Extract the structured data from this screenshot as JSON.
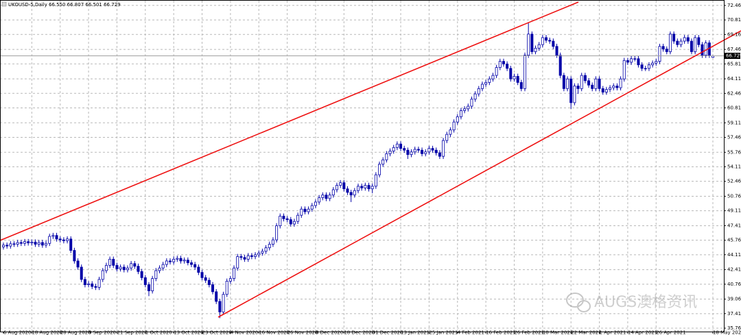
{
  "chart_data": {
    "type": "candlestick",
    "title": "UKOUSD-5,Daily 66.550 66.807 66.501 66.729",
    "watermark": "AUGS澳格资讯",
    "color": "#0000a8",
    "up_fill": "#ffffff",
    "grid": true,
    "ylim": [
      35.37,
      73.0
    ],
    "yticks": [
      {
        "value": 72.46,
        "label": "72.460"
      },
      {
        "value": 70.81,
        "label": "70.810"
      },
      {
        "value": 69.16,
        "label": "69.160"
      },
      {
        "value": 67.46,
        "label": "67.460"
      },
      {
        "value": 65.81,
        "label": "65.810"
      },
      {
        "value": 64.11,
        "label": "64.110"
      },
      {
        "value": 62.46,
        "label": "62.460"
      },
      {
        "value": 60.81,
        "label": "60.810"
      },
      {
        "value": 59.11,
        "label": "59.110"
      },
      {
        "value": 57.46,
        "label": "57.460"
      },
      {
        "value": 55.76,
        "label": "55.760"
      },
      {
        "value": 54.11,
        "label": "54.110"
      },
      {
        "value": 52.46,
        "label": "52.460"
      },
      {
        "value": 50.76,
        "label": "50.760"
      },
      {
        "value": 49.11,
        "label": "49.110"
      },
      {
        "value": 47.41,
        "label": "47.410"
      },
      {
        "value": 45.76,
        "label": "45.760"
      },
      {
        "value": 44.11,
        "label": "44.110"
      },
      {
        "value": 42.41,
        "label": "42.410"
      },
      {
        "value": 40.76,
        "label": "40.760"
      },
      {
        "value": 39.06,
        "label": "39.060"
      },
      {
        "value": 37.41,
        "label": "37.410"
      },
      {
        "value": 35.76,
        "label": "35.760"
      }
    ],
    "categories": [
      "6 Aug 2020",
      null,
      null,
      null,
      null,
      null,
      null,
      null,
      "18 Aug 2020",
      null,
      null,
      null,
      null,
      null,
      null,
      null,
      "28 Aug 2020",
      null,
      null,
      null,
      null,
      null,
      null,
      null,
      "9 Sep 2020",
      null,
      null,
      null,
      null,
      null,
      null,
      null,
      "21 Sep 2020",
      null,
      null,
      null,
      null,
      null,
      null,
      null,
      "1 Oct 2020",
      null,
      null,
      null,
      null,
      null,
      null,
      null,
      "13 Oct 2020",
      null,
      null,
      null,
      null,
      null,
      null,
      null,
      "23 Oct 2020",
      null,
      null,
      null,
      null,
      null,
      null,
      null,
      "4 Nov 2020",
      null,
      null,
      null,
      null,
      null,
      null,
      null,
      "16 Nov 2020",
      null,
      null,
      null,
      null,
      null,
      null,
      null,
      "26 Nov 2020",
      null,
      null,
      null,
      null,
      null,
      null,
      null,
      "8 Dec 2020",
      null,
      null,
      null,
      null,
      null,
      null,
      null,
      "18 Dec 2020",
      null,
      null,
      null,
      null,
      null,
      null,
      null,
      "31 Dec 2020",
      null,
      null,
      null,
      null,
      null,
      null,
      null,
      "13 Jan 2021",
      null,
      null,
      null,
      null,
      null,
      null,
      null,
      "25 Jan 2021",
      null,
      null,
      null,
      null,
      null,
      null,
      null,
      "4 Feb 2021",
      null,
      null,
      null,
      null,
      null,
      null,
      null,
      "16 Feb 2021",
      null,
      null,
      null,
      null,
      null,
      null,
      null,
      "26 Feb 2021",
      null,
      null,
      null,
      null,
      null,
      null,
      null,
      "10 Mar 2021",
      null,
      null,
      null,
      null,
      null,
      null,
      null,
      "22 Mar 2021",
      null,
      null,
      null,
      null,
      null,
      null,
      null,
      "1 Apr 2021",
      null,
      null,
      null,
      null,
      null,
      null,
      null,
      "14 Apr 2021",
      null,
      null,
      null,
      null,
      null,
      null,
      null,
      "26 Apr 2021",
      null,
      null,
      null,
      null,
      null,
      null,
      null,
      null,
      null,
      null,
      null,
      null,
      null,
      null,
      null,
      "18 May 2021"
    ],
    "open": [
      45.0,
      45.2,
      45.1,
      45.35,
      45.3,
      45.5,
      45.4,
      45.6,
      45.45,
      45.55,
      45.3,
      45.5,
      45.2,
      45.4,
      46.2,
      46.3,
      45.9,
      45.8,
      45.7,
      45.9,
      44.6,
      43.4,
      42.7,
      41.3,
      40.7,
      40.8,
      40.5,
      40.4,
      41.3,
      42.3,
      42.9,
      43.6,
      42.9,
      42.5,
      42.7,
      42.4,
      42.6,
      43.1,
      42.8,
      42.2,
      41.5,
      40.7,
      40.0,
      41.4,
      42.3,
      42.6,
      43.0,
      43.4,
      43.3,
      43.6,
      43.7,
      43.4,
      43.5,
      43.2,
      43.0,
      42.7,
      42.1,
      41.5,
      41.2,
      40.7,
      39.9,
      38.8,
      37.6,
      39.6,
      41.1,
      41.4,
      42.6,
      43.9,
      43.8,
      43.6,
      44.0,
      43.9,
      44.1,
      44.3,
      44.5,
      44.9,
      45.3,
      45.8,
      47.4,
      48.5,
      48.2,
      48.1,
      47.6,
      47.9,
      48.6,
      49.3,
      49.0,
      49.3,
      49.7,
      50.1,
      50.6,
      50.9,
      50.5,
      50.9,
      51.5,
      52.0,
      52.3,
      51.6,
      51.2,
      50.9,
      51.4,
      51.9,
      51.7,
      52.0,
      51.6,
      51.9,
      53.2,
      54.4,
      54.9,
      55.6,
      55.9,
      56.3,
      56.7,
      56.2,
      56.0,
      55.5,
      55.8,
      56.1,
      56.0,
      55.6,
      55.8,
      56.2,
      56.0,
      55.7,
      55.3,
      57.1,
      57.8,
      58.3,
      59.2,
      59.8,
      60.5,
      60.7,
      61.0,
      61.8,
      62.4,
      63.0,
      63.5,
      63.7,
      64.1,
      64.5,
      65.4,
      66.1,
      65.8,
      65.3,
      64.1,
      64.4,
      63.7,
      63.0,
      66.8,
      69.2,
      67.2,
      67.6,
      68.0,
      68.8,
      68.5,
      68.4,
      67.8,
      66.8,
      64.5,
      63.0,
      64.1,
      61.4,
      63.3,
      63.0,
      64.5,
      63.9,
      63.4,
      63.0,
      64.1,
      63.0,
      62.6,
      62.9,
      63.1,
      63.3,
      63.1,
      64.1,
      66.2,
      66.0,
      66.4,
      66.4,
      65.7,
      65.3,
      65.3,
      65.7,
      65.9,
      66.1,
      67.8,
      67.5,
      67.2,
      69.2,
      68.4,
      68.0,
      68.4,
      68.8,
      68.4,
      67.2,
      68.8,
      68.0,
      66.8,
      68.2,
      66.55
    ],
    "high": [
      45.5,
      45.5,
      45.65,
      45.65,
      45.8,
      45.8,
      45.9,
      45.9,
      45.85,
      45.85,
      45.8,
      45.8,
      45.7,
      46.5,
      46.6,
      46.6,
      46.2,
      46.1,
      46.2,
      46.2,
      44.9,
      43.7,
      43.0,
      41.6,
      41.1,
      41.1,
      40.8,
      41.6,
      42.6,
      43.2,
      43.9,
      43.9,
      43.2,
      43.0,
      43.0,
      42.9,
      43.4,
      43.4,
      43.1,
      42.5,
      41.8,
      41.0,
      41.7,
      42.6,
      42.9,
      43.3,
      43.7,
      43.7,
      43.9,
      44.0,
      44.0,
      43.8,
      43.8,
      43.5,
      43.3,
      43.0,
      42.4,
      41.8,
      41.5,
      41.0,
      40.2,
      39.1,
      39.9,
      41.4,
      41.7,
      42.9,
      44.2,
      44.2,
      44.1,
      44.3,
      44.3,
      44.4,
      44.6,
      44.8,
      45.2,
      45.6,
      46.1,
      47.7,
      48.8,
      48.8,
      48.5,
      48.4,
      48.2,
      48.9,
      49.6,
      49.6,
      49.6,
      50.0,
      50.4,
      50.9,
      51.2,
      51.2,
      51.2,
      51.8,
      52.3,
      52.6,
      52.6,
      51.9,
      51.5,
      51.7,
      52.2,
      52.2,
      52.3,
      52.3,
      52.2,
      53.5,
      54.7,
      55.2,
      55.9,
      56.2,
      56.6,
      57.0,
      57.0,
      56.5,
      56.3,
      56.1,
      56.4,
      56.4,
      56.3,
      56.1,
      56.5,
      56.5,
      56.3,
      56.0,
      57.4,
      58.1,
      58.6,
      59.5,
      60.1,
      60.8,
      61.0,
      61.3,
      62.1,
      62.7,
      63.3,
      63.8,
      64.0,
      64.4,
      64.8,
      65.7,
      66.4,
      66.4,
      66.1,
      65.6,
      64.7,
      64.7,
      64.0,
      67.1,
      70.5,
      69.5,
      67.9,
      68.3,
      69.1,
      69.1,
      68.8,
      68.7,
      68.1,
      67.1,
      64.8,
      64.4,
      64.4,
      63.6,
      63.6,
      64.8,
      64.8,
      64.2,
      63.7,
      64.4,
      64.4,
      63.3,
      63.2,
      63.4,
      63.6,
      63.6,
      64.4,
      66.5,
      66.5,
      66.7,
      66.7,
      66.7,
      66.0,
      65.6,
      66.0,
      66.2,
      66.4,
      68.1,
      68.1,
      67.8,
      69.5,
      69.5,
      68.7,
      68.7,
      69.1,
      69.1,
      68.7,
      69.1,
      69.1,
      68.3,
      68.5,
      68.5,
      66.807
    ],
    "low": [
      44.7,
      44.8,
      44.8,
      45.0,
      45.0,
      45.1,
      45.1,
      45.15,
      45.15,
      45.0,
      45.0,
      44.9,
      44.9,
      45.1,
      45.9,
      45.6,
      45.5,
      45.4,
      45.4,
      44.3,
      43.1,
      42.4,
      41.0,
      40.4,
      40.4,
      40.2,
      40.1,
      40.1,
      41.0,
      42.0,
      42.6,
      42.6,
      42.2,
      42.2,
      42.1,
      42.1,
      42.3,
      42.5,
      41.9,
      41.2,
      40.4,
      39.4,
      39.7,
      41.1,
      42.0,
      42.3,
      42.7,
      43.0,
      43.0,
      43.3,
      43.1,
      43.1,
      42.9,
      42.7,
      42.4,
      41.8,
      41.2,
      40.9,
      40.4,
      39.6,
      38.5,
      36.9,
      37.3,
      39.3,
      40.8,
      41.1,
      42.3,
      43.5,
      43.3,
      43.3,
      43.6,
      43.6,
      43.8,
      44.0,
      44.2,
      44.6,
      45.0,
      45.5,
      47.1,
      47.9,
      47.8,
      47.3,
      47.3,
      47.6,
      48.3,
      48.7,
      48.7,
      49.0,
      49.4,
      49.8,
      50.3,
      50.2,
      50.2,
      50.6,
      51.2,
      51.7,
      51.3,
      50.9,
      50.1,
      50.6,
      51.1,
      51.4,
      51.4,
      51.3,
      51.1,
      51.6,
      52.9,
      54.1,
      54.6,
      55.3,
      55.6,
      56.0,
      55.9,
      55.7,
      55.0,
      55.2,
      55.5,
      55.7,
      55.3,
      55.3,
      55.5,
      55.7,
      55.4,
      55.0,
      55.0,
      56.8,
      57.5,
      58.0,
      58.9,
      59.5,
      60.2,
      60.4,
      60.7,
      61.5,
      62.1,
      62.7,
      63.2,
      63.4,
      63.8,
      64.2,
      65.1,
      65.5,
      65.0,
      63.8,
      63.8,
      63.4,
      62.7,
      62.7,
      66.5,
      66.9,
      66.9,
      67.3,
      67.7,
      68.2,
      68.1,
      67.5,
      66.5,
      64.2,
      62.7,
      62.7,
      60.7,
      61.1,
      62.4,
      62.7,
      63.6,
      63.1,
      62.7,
      62.7,
      62.7,
      62.3,
      62.3,
      62.6,
      62.8,
      62.8,
      62.8,
      63.8,
      65.7,
      65.7,
      66.1,
      65.4,
      65.0,
      65.0,
      65.0,
      65.4,
      65.6,
      65.8,
      67.2,
      66.9,
      66.9,
      68.1,
      67.7,
      67.7,
      68.1,
      68.1,
      66.9,
      66.9,
      67.7,
      66.5,
      66.5,
      66.5,
      66.501
    ],
    "close": [
      45.2,
      45.1,
      45.35,
      45.3,
      45.5,
      45.4,
      45.6,
      45.45,
      45.55,
      45.3,
      45.5,
      45.2,
      45.4,
      46.2,
      46.3,
      45.9,
      45.8,
      45.7,
      45.9,
      44.6,
      43.4,
      42.7,
      41.3,
      40.7,
      40.8,
      40.5,
      40.4,
      41.3,
      42.3,
      42.9,
      43.6,
      42.9,
      42.5,
      42.7,
      42.4,
      42.6,
      43.1,
      42.8,
      42.2,
      41.5,
      40.7,
      40.0,
      41.4,
      42.3,
      42.6,
      43.0,
      43.4,
      43.3,
      43.6,
      43.7,
      43.4,
      43.5,
      43.2,
      43.0,
      42.7,
      42.1,
      41.5,
      41.2,
      40.7,
      39.9,
      38.8,
      37.6,
      39.6,
      41.1,
      41.4,
      42.6,
      43.9,
      43.8,
      43.6,
      44.0,
      43.9,
      44.1,
      44.3,
      44.5,
      44.9,
      45.3,
      45.8,
      47.4,
      48.5,
      48.2,
      48.1,
      47.6,
      47.9,
      48.6,
      49.3,
      49.0,
      49.3,
      49.7,
      50.1,
      50.6,
      50.9,
      50.5,
      50.9,
      51.5,
      52.0,
      52.3,
      51.6,
      51.2,
      50.9,
      51.4,
      51.9,
      51.7,
      52.0,
      51.6,
      51.9,
      53.2,
      54.4,
      54.9,
      55.6,
      55.9,
      56.3,
      56.7,
      56.2,
      56.0,
      55.5,
      55.8,
      56.1,
      56.0,
      55.6,
      55.8,
      56.2,
      56.0,
      55.7,
      55.3,
      57.1,
      57.8,
      58.3,
      59.2,
      59.8,
      60.5,
      60.7,
      61.0,
      61.8,
      62.4,
      63.0,
      63.5,
      63.7,
      64.1,
      64.5,
      65.4,
      66.1,
      65.8,
      65.3,
      64.1,
      64.4,
      63.7,
      63.0,
      66.8,
      69.2,
      67.2,
      67.6,
      68.0,
      68.8,
      68.5,
      68.4,
      67.8,
      66.8,
      64.5,
      63.0,
      64.1,
      61.4,
      63.3,
      63.0,
      64.5,
      63.9,
      63.4,
      63.0,
      64.1,
      63.0,
      62.6,
      62.9,
      63.1,
      63.3,
      63.1,
      64.1,
      66.2,
      66.0,
      66.4,
      66.4,
      65.7,
      65.3,
      65.3,
      65.7,
      65.9,
      66.1,
      67.8,
      67.5,
      67.2,
      69.2,
      68.4,
      68.0,
      68.4,
      68.8,
      68.4,
      67.2,
      68.8,
      68.0,
      66.8,
      68.2,
      66.8,
      66.729
    ]
  }
}
